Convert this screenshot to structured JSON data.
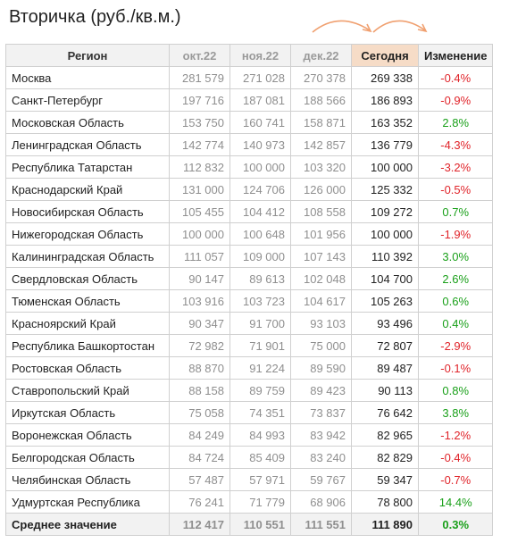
{
  "title": "Вторичка (руб./кв.м.)",
  "colors": {
    "header_bg": "#f2f2f2",
    "today_header_bg": "#f6dcc7",
    "negative": "#e0242a",
    "positive": "#1aa01a",
    "arrow": "#f0a070"
  },
  "icons": [
    "curved-arrow-icon",
    "curved-arrow-icon"
  ],
  "headers": {
    "region": "Регион",
    "oct": "окт.22",
    "nov": "ноя.22",
    "dec": "дек.22",
    "today": "Сегодня",
    "change": "Изменение"
  },
  "rows": [
    {
      "region": "Москва",
      "oct": "281 579",
      "nov": "271 028",
      "dec": "270 378",
      "today": "269 338",
      "change": "-0.4%",
      "sign": "neg"
    },
    {
      "region": "Санкт-Петербург",
      "oct": "197 716",
      "nov": "187 081",
      "dec": "188 566",
      "today": "186 893",
      "change": "-0.9%",
      "sign": "neg"
    },
    {
      "region": "Московская Область",
      "oct": "153 750",
      "nov": "160 741",
      "dec": "158 871",
      "today": "163 352",
      "change": "2.8%",
      "sign": "pos"
    },
    {
      "region": "Ленинградская Область",
      "oct": "142 774",
      "nov": "140 973",
      "dec": "142 857",
      "today": "136 779",
      "change": "-4.3%",
      "sign": "neg"
    },
    {
      "region": "Республика Татарстан",
      "oct": "112 832",
      "nov": "100 000",
      "dec": "103 320",
      "today": "100 000",
      "change": "-3.2%",
      "sign": "neg"
    },
    {
      "region": "Краснодарский Край",
      "oct": "131 000",
      "nov": "124 706",
      "dec": "126 000",
      "today": "125 332",
      "change": "-0.5%",
      "sign": "neg"
    },
    {
      "region": "Новосибирская Область",
      "oct": "105 455",
      "nov": "104 412",
      "dec": "108 558",
      "today": "109 272",
      "change": "0.7%",
      "sign": "pos"
    },
    {
      "region": "Нижегородская Область",
      "oct": "100 000",
      "nov": "100 648",
      "dec": "101 956",
      "today": "100 000",
      "change": "-1.9%",
      "sign": "neg"
    },
    {
      "region": "Калининградская Область",
      "oct": "111 057",
      "nov": "109 000",
      "dec": "107 143",
      "today": "110 392",
      "change": "3.0%",
      "sign": "pos"
    },
    {
      "region": "Свердловская Область",
      "oct": "90 147",
      "nov": "89 613",
      "dec": "102 048",
      "today": "104 700",
      "change": "2.6%",
      "sign": "pos"
    },
    {
      "region": "Тюменская Область",
      "oct": "103 916",
      "nov": "103 723",
      "dec": "104 617",
      "today": "105 263",
      "change": "0.6%",
      "sign": "pos"
    },
    {
      "region": "Красноярский Край",
      "oct": "90 347",
      "nov": "91 700",
      "dec": "93 103",
      "today": "93 496",
      "change": "0.4%",
      "sign": "pos"
    },
    {
      "region": "Республика Башкортостан",
      "oct": "72 982",
      "nov": "71 901",
      "dec": "75 000",
      "today": "72 807",
      "change": "-2.9%",
      "sign": "neg"
    },
    {
      "region": "Ростовская Область",
      "oct": "88 870",
      "nov": "91 224",
      "dec": "89 590",
      "today": "89 487",
      "change": "-0.1%",
      "sign": "neg"
    },
    {
      "region": "Ставропольский Край",
      "oct": "88 158",
      "nov": "89 759",
      "dec": "89 423",
      "today": "90 113",
      "change": "0.8%",
      "sign": "pos"
    },
    {
      "region": "Иркутская Область",
      "oct": "75 058",
      "nov": "74 351",
      "dec": "73 837",
      "today": "76 642",
      "change": "3.8%",
      "sign": "pos"
    },
    {
      "region": "Воронежская Область",
      "oct": "84 249",
      "nov": "84 993",
      "dec": "83 942",
      "today": "82 965",
      "change": "-1.2%",
      "sign": "neg"
    },
    {
      "region": "Белгородская Область",
      "oct": "84 724",
      "nov": "85 409",
      "dec": "83 240",
      "today": "82 829",
      "change": "-0.4%",
      "sign": "neg"
    },
    {
      "region": "Челябинская Область",
      "oct": "57 487",
      "nov": "57 971",
      "dec": "59 767",
      "today": "59 347",
      "change": "-0.7%",
      "sign": "neg"
    },
    {
      "region": "Удмуртская Республика",
      "oct": "76 241",
      "nov": "71 779",
      "dec": "68 906",
      "today": "78 800",
      "change": "14.4%",
      "sign": "pos"
    }
  ],
  "average": {
    "region": "Среднее значение",
    "oct": "112 417",
    "nov": "110 551",
    "dec": "111 551",
    "today": "111 890",
    "change": "0.3%",
    "sign": "pos"
  }
}
